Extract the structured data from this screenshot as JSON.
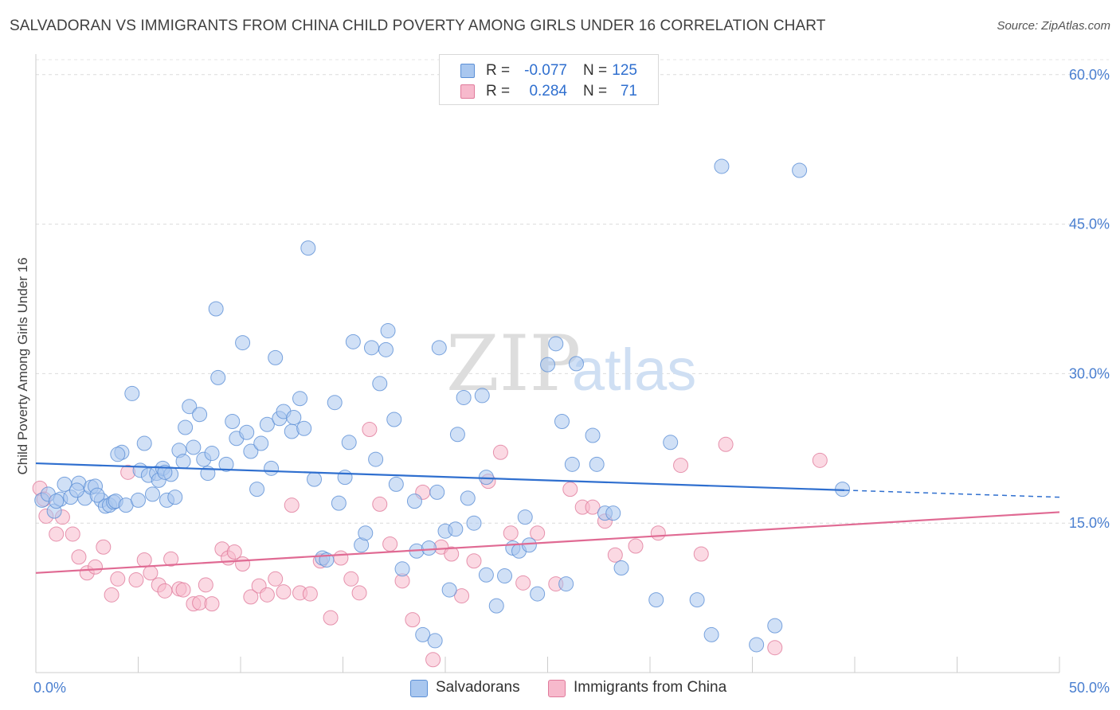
{
  "title": "SALVADORAN VS IMMIGRANTS FROM CHINA CHILD POVERTY AMONG GIRLS UNDER 16 CORRELATION CHART",
  "source": "Source: ZipAtlas.com",
  "watermark": {
    "zip": "ZIP",
    "atlas": "atlas"
  },
  "legend": {
    "rows": [
      {
        "r_label": "R =",
        "r_value": "-0.077",
        "n_label": "N =",
        "n_value": "125",
        "color": "#a9c7ef",
        "stroke": "#5b8fd6"
      },
      {
        "r_label": "R =",
        "r_value": "0.284",
        "n_label": "N =",
        "n_value": "71",
        "color": "#f7b9cc",
        "stroke": "#e07a9b"
      }
    ]
  },
  "bottom_legend": [
    "Salvadorans",
    "Immigrants from China"
  ],
  "chart_data": {
    "type": "scatter",
    "ylabel": "Child Poverty Among Girls Under 16",
    "xlim": [
      0,
      50
    ],
    "ylim": [
      0,
      61.5
    ],
    "x_tick_labels": [
      "0.0%",
      "50.0%"
    ],
    "y_ticks": [
      15,
      30,
      45,
      60
    ],
    "y_tick_labels": [
      "15.0%",
      "30.0%",
      "45.0%",
      "60.0%"
    ],
    "grid": "horizontal dashed",
    "colors": {
      "blue_fill": "#a9c7ef",
      "blue_stroke": "#5b8fd6",
      "blue_line": "#2f6fcf",
      "pink_fill": "#f7b9cc",
      "pink_stroke": "#e07a9b",
      "pink_line": "#e06a93"
    },
    "series": [
      {
        "name": "Salvadorans",
        "trend": {
          "x": [
            0,
            39.5
          ],
          "y": [
            21.0,
            18.3
          ],
          "dashed_to": [
            50,
            17.6
          ]
        },
        "points": [
          [
            0.3,
            17.3
          ],
          [
            0.6,
            17.9
          ],
          [
            0.9,
            16.2
          ],
          [
            1.2,
            17.4
          ],
          [
            1.4,
            18.9
          ],
          [
            1.7,
            17.6
          ],
          [
            2.1,
            19.0
          ],
          [
            2.4,
            17.5
          ],
          [
            2.7,
            18.6
          ],
          [
            2.9,
            18.7
          ],
          [
            3.2,
            17.3
          ],
          [
            3.4,
            16.7
          ],
          [
            3.6,
            16.8
          ],
          [
            3.8,
            17.1
          ],
          [
            3.9,
            17.2
          ],
          [
            4.2,
            22.1
          ],
          [
            4.4,
            16.8
          ],
          [
            4.7,
            28.0
          ],
          [
            5.1,
            20.3
          ],
          [
            5.3,
            23.0
          ],
          [
            5.5,
            19.8
          ],
          [
            5.7,
            17.9
          ],
          [
            5.9,
            20.0
          ],
          [
            6.0,
            19.3
          ],
          [
            6.2,
            20.5
          ],
          [
            6.4,
            17.3
          ],
          [
            6.6,
            19.9
          ],
          [
            6.8,
            17.6
          ],
          [
            7.0,
            22.3
          ],
          [
            7.3,
            24.6
          ],
          [
            7.5,
            26.7
          ],
          [
            7.7,
            22.6
          ],
          [
            8.0,
            25.9
          ],
          [
            8.2,
            21.4
          ],
          [
            8.4,
            20.0
          ],
          [
            8.6,
            22.0
          ],
          [
            8.8,
            36.5
          ],
          [
            8.9,
            29.6
          ],
          [
            9.3,
            20.9
          ],
          [
            9.6,
            25.2
          ],
          [
            9.8,
            23.5
          ],
          [
            10.1,
            33.1
          ],
          [
            10.3,
            24.1
          ],
          [
            10.5,
            22.2
          ],
          [
            10.8,
            18.4
          ],
          [
            11.0,
            23.0
          ],
          [
            11.3,
            24.9
          ],
          [
            11.5,
            20.5
          ],
          [
            11.7,
            31.6
          ],
          [
            11.9,
            25.5
          ],
          [
            12.1,
            26.2
          ],
          [
            12.5,
            24.2
          ],
          [
            12.6,
            25.6
          ],
          [
            12.9,
            27.5
          ],
          [
            13.1,
            24.5
          ],
          [
            13.3,
            42.6
          ],
          [
            13.6,
            19.4
          ],
          [
            14.0,
            11.5
          ],
          [
            14.2,
            11.3
          ],
          [
            14.6,
            27.1
          ],
          [
            14.8,
            17.0
          ],
          [
            15.1,
            19.6
          ],
          [
            15.3,
            23.1
          ],
          [
            15.5,
            33.2
          ],
          [
            15.9,
            12.8
          ],
          [
            16.1,
            14.0
          ],
          [
            16.4,
            32.6
          ],
          [
            16.6,
            21.4
          ],
          [
            16.8,
            29.0
          ],
          [
            17.1,
            32.4
          ],
          [
            17.2,
            34.3
          ],
          [
            17.5,
            25.4
          ],
          [
            17.6,
            18.9
          ],
          [
            17.9,
            10.4
          ],
          [
            18.5,
            17.2
          ],
          [
            18.6,
            12.2
          ],
          [
            18.9,
            3.8
          ],
          [
            19.2,
            12.5
          ],
          [
            19.5,
            3.2
          ],
          [
            19.6,
            18.1
          ],
          [
            19.7,
            32.6
          ],
          [
            20.0,
            14.2
          ],
          [
            20.2,
            8.3
          ],
          [
            20.5,
            14.4
          ],
          [
            20.6,
            23.9
          ],
          [
            20.9,
            27.6
          ],
          [
            21.1,
            17.5
          ],
          [
            21.4,
            15.0
          ],
          [
            21.8,
            27.8
          ],
          [
            22.0,
            19.6
          ],
          [
            22.0,
            9.8
          ],
          [
            22.5,
            6.7
          ],
          [
            22.9,
            9.7
          ],
          [
            23.3,
            12.5
          ],
          [
            23.6,
            12.2
          ],
          [
            23.9,
            15.6
          ],
          [
            24.1,
            12.8
          ],
          [
            24.5,
            7.9
          ],
          [
            25.0,
            30.9
          ],
          [
            25.4,
            33.0
          ],
          [
            25.7,
            25.2
          ],
          [
            25.9,
            8.9
          ],
          [
            26.2,
            20.9
          ],
          [
            26.4,
            31.0
          ],
          [
            27.2,
            23.8
          ],
          [
            27.4,
            20.9
          ],
          [
            27.8,
            16.0
          ],
          [
            28.2,
            16.0
          ],
          [
            28.6,
            10.5
          ],
          [
            30.3,
            7.3
          ],
          [
            31.0,
            23.1
          ],
          [
            32.3,
            7.3
          ],
          [
            33.0,
            3.8
          ],
          [
            33.5,
            50.8
          ],
          [
            35.2,
            2.8
          ],
          [
            36.1,
            4.7
          ],
          [
            37.3,
            50.4
          ],
          [
            39.4,
            18.4
          ],
          [
            1.0,
            17.2
          ],
          [
            2.0,
            18.3
          ],
          [
            3.0,
            17.8
          ],
          [
            4.0,
            21.9
          ],
          [
            5.0,
            17.3
          ],
          [
            6.3,
            20.1
          ],
          [
            7.2,
            21.2
          ]
        ]
      },
      {
        "name": "Immigrants from China",
        "trend": {
          "x": [
            0,
            50
          ],
          "y": [
            10.0,
            16.1
          ]
        },
        "points": [
          [
            0.2,
            18.5
          ],
          [
            0.4,
            17.4
          ],
          [
            0.5,
            15.7
          ],
          [
            1.0,
            13.9
          ],
          [
            1.3,
            15.6
          ],
          [
            1.8,
            13.9
          ],
          [
            2.1,
            11.6
          ],
          [
            2.5,
            10.0
          ],
          [
            2.9,
            10.6
          ],
          [
            3.3,
            12.6
          ],
          [
            3.7,
            7.8
          ],
          [
            4.0,
            9.4
          ],
          [
            4.5,
            20.1
          ],
          [
            4.9,
            9.3
          ],
          [
            5.3,
            11.3
          ],
          [
            5.6,
            10.0
          ],
          [
            6.0,
            8.8
          ],
          [
            6.3,
            8.2
          ],
          [
            6.6,
            11.4
          ],
          [
            7.0,
            8.4
          ],
          [
            7.2,
            8.3
          ],
          [
            7.7,
            6.9
          ],
          [
            8.0,
            7.0
          ],
          [
            8.3,
            8.8
          ],
          [
            8.6,
            6.9
          ],
          [
            9.1,
            12.4
          ],
          [
            9.4,
            11.5
          ],
          [
            9.7,
            12.1
          ],
          [
            10.1,
            10.9
          ],
          [
            10.5,
            7.6
          ],
          [
            10.9,
            8.7
          ],
          [
            11.3,
            7.8
          ],
          [
            11.7,
            9.4
          ],
          [
            12.1,
            8.1
          ],
          [
            12.5,
            16.8
          ],
          [
            12.9,
            8.0
          ],
          [
            13.4,
            7.9
          ],
          [
            13.9,
            11.2
          ],
          [
            14.4,
            5.5
          ],
          [
            14.9,
            11.5
          ],
          [
            15.4,
            9.4
          ],
          [
            15.8,
            8.0
          ],
          [
            16.3,
            24.4
          ],
          [
            16.8,
            16.9
          ],
          [
            17.3,
            12.9
          ],
          [
            17.9,
            9.2
          ],
          [
            18.4,
            5.3
          ],
          [
            18.9,
            18.1
          ],
          [
            19.4,
            1.3
          ],
          [
            19.8,
            12.6
          ],
          [
            20.3,
            11.9
          ],
          [
            20.8,
            7.7
          ],
          [
            21.4,
            11.2
          ],
          [
            22.1,
            19.2
          ],
          [
            22.7,
            22.1
          ],
          [
            23.2,
            14.0
          ],
          [
            23.8,
            9.0
          ],
          [
            24.5,
            14.0
          ],
          [
            25.4,
            8.9
          ],
          [
            26.1,
            18.4
          ],
          [
            26.7,
            16.6
          ],
          [
            27.2,
            16.6
          ],
          [
            27.8,
            15.2
          ],
          [
            28.3,
            11.8
          ],
          [
            29.3,
            12.7
          ],
          [
            30.4,
            14.0
          ],
          [
            31.5,
            20.8
          ],
          [
            32.5,
            11.9
          ],
          [
            33.7,
            22.9
          ],
          [
            36.1,
            2.5
          ],
          [
            38.3,
            21.3
          ]
        ]
      }
    ]
  }
}
